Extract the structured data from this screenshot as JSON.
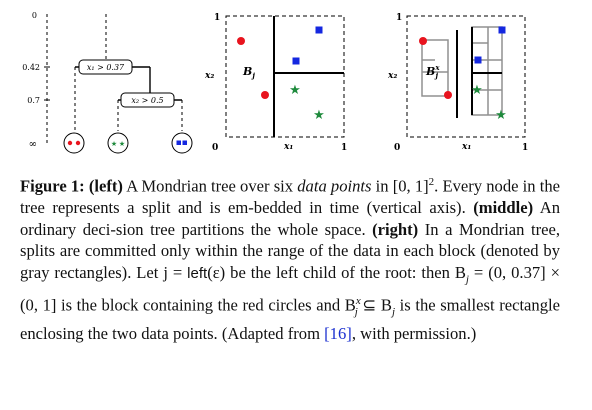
{
  "figure": {
    "left": {
      "ticks": [
        "0",
        "0.42",
        "0.7",
        "∞"
      ],
      "splits": [
        "x₁ > 0.37",
        "x₂ > 0.5"
      ]
    },
    "middle": {
      "axis_min": "0",
      "axis_max": "1",
      "x_label": "x₁",
      "y_label": "x₂",
      "x_tick": "1",
      "y_tick": "1",
      "block_label": "B",
      "block_sub": "j"
    },
    "right": {
      "axis_min": "0",
      "axis_max": "1",
      "x_label": "x₁",
      "y_label": "x₂",
      "x_tick": "1",
      "y_tick": "1",
      "block_label": "B",
      "block_sup": "x",
      "block_sub": "j"
    },
    "colors": {
      "red": "#e8141e",
      "blue": "#1427e0",
      "green": "#1e8a3c",
      "gray": "#909090"
    }
  },
  "caption": {
    "label": "Figure 1:",
    "left_tag": "(left)",
    "part1": " A Mondrian tree over six ",
    "data_points": "data points",
    "part2": " in [0, 1]",
    "sup2": "2",
    "part3": ". Every node in the tree represents a split and is em-bedded in time (vertical axis). ",
    "middle_tag": "(middle)",
    "part4": " An ordinary deci-sion tree partitions the whole space. ",
    "right_tag": "(right)",
    "part5": " In a Mondrian tree, splits are committed only within the range of the data in each block (denoted by gray rectangles). Let j = ",
    "left_fn": "left",
    "part6": "(ε) be the left child of the root: then B",
    "sub_j1": "j",
    "part7": " = (0, 0.37] × (0, 1] is the block containing the red circles and B",
    "sup_x": "x",
    "sub_j2": "j",
    "part8": " ⊆ B",
    "sub_j3": "j",
    "part9": " is the smallest rectangle enclosing the two data points. (Adapted from ",
    "ref": "[16]",
    "part10": ", with permission.)"
  }
}
